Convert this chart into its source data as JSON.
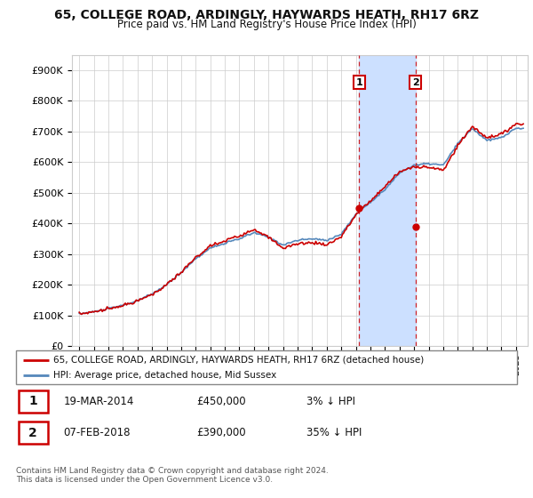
{
  "title": "65, COLLEGE ROAD, ARDINGLY, HAYWARDS HEATH, RH17 6RZ",
  "subtitle": "Price paid vs. HM Land Registry's House Price Index (HPI)",
  "ylim": [
    0,
    950000
  ],
  "yticks": [
    0,
    100000,
    200000,
    300000,
    400000,
    500000,
    600000,
    700000,
    800000,
    900000
  ],
  "ytick_labels": [
    "£0",
    "£100K",
    "£200K",
    "£300K",
    "£400K",
    "£500K",
    "£600K",
    "£700K",
    "£800K",
    "£900K"
  ],
  "hpi_color": "#5588bb",
  "price_color": "#cc0000",
  "t1_year": 2014.22,
  "t1_price": 450000,
  "t2_year": 2018.1,
  "t2_price": 390000,
  "legend_line1": "65, COLLEGE ROAD, ARDINGLY, HAYWARDS HEATH, RH17 6RZ (detached house)",
  "legend_line2": "HPI: Average price, detached house, Mid Sussex",
  "table_row1": [
    "1",
    "19-MAR-2014",
    "£450,000",
    "3% ↓ HPI"
  ],
  "table_row2": [
    "2",
    "07-FEB-2018",
    "£390,000",
    "35% ↓ HPI"
  ],
  "footnote1": "Contains HM Land Registry data © Crown copyright and database right 2024.",
  "footnote2": "This data is licensed under the Open Government Licence v3.0.",
  "background_color": "#ffffff",
  "grid_color": "#cccccc",
  "shade_color": "#cce0ff",
  "xlim_left": 1994.5,
  "xlim_right": 2025.8
}
